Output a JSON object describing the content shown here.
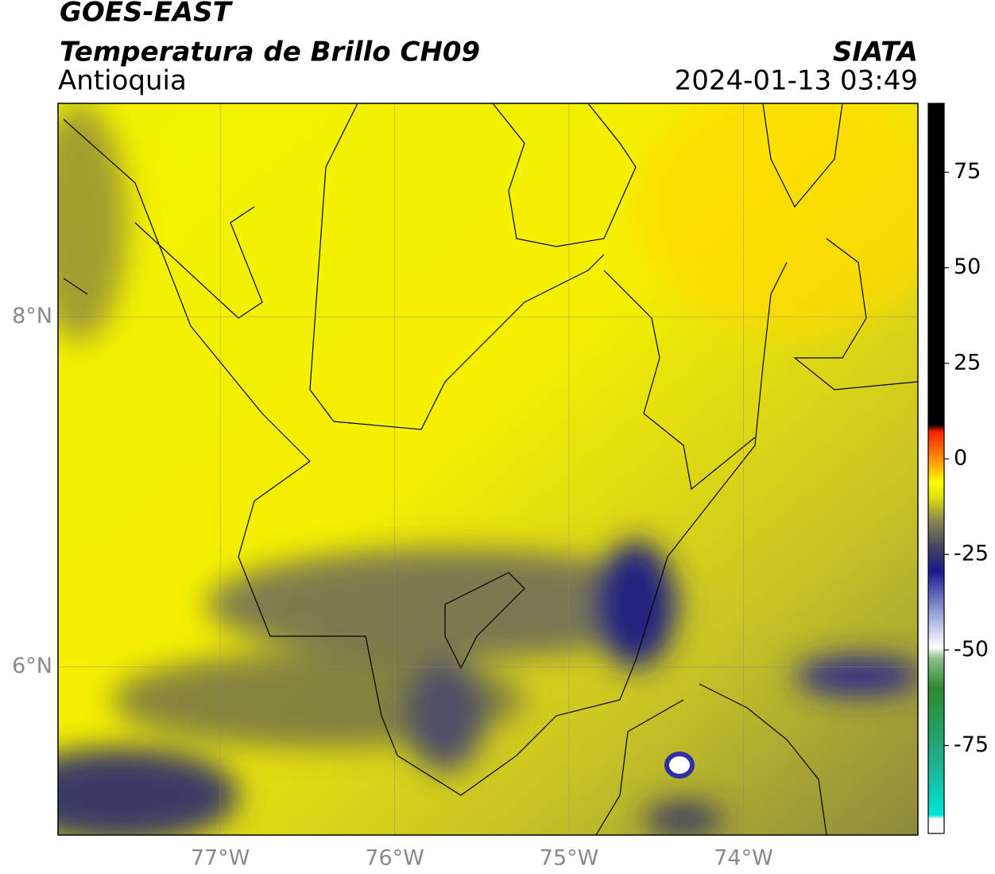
{
  "header": {
    "satellite": "GOES-EAST",
    "product": "Temperatura de Brillo CH09",
    "region": "Antioquia",
    "source": "SIATA",
    "datetime": "2024-01-13 03:49"
  },
  "map": {
    "xlim": [
      -77.93,
      -73.0
    ],
    "ylim": [
      5.04,
      9.22
    ],
    "xticks": [
      {
        "value": -77,
        "label": "77°W"
      },
      {
        "value": -76,
        "label": "76°W"
      },
      {
        "value": -75,
        "label": "75°W"
      },
      {
        "value": -74,
        "label": "74°W"
      }
    ],
    "yticks": [
      {
        "value": 8,
        "label": "8°N"
      },
      {
        "value": 6,
        "label": "6°N"
      }
    ],
    "grid": true
  },
  "colorbar": {
    "lim": [
      -98,
      93
    ],
    "ticks": [
      75,
      50,
      25,
      0,
      -25,
      -50,
      -75
    ]
  }
}
